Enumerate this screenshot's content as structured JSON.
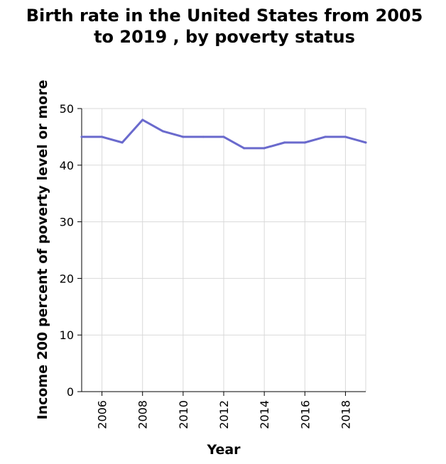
{
  "chart_data": {
    "type": "line",
    "title_lines": [
      "Birth rate in the United States from 2005",
      "to 2019 , by poverty status"
    ],
    "xlabel": "Year",
    "ylabel": "Income 200 percent of poverty level or more",
    "x": [
      2005,
      2006,
      2007,
      2008,
      2009,
      2010,
      2011,
      2012,
      2013,
      2014,
      2015,
      2016,
      2017,
      2018,
      2019
    ],
    "series": [
      {
        "values": [
          45,
          45,
          44,
          48,
          46,
          45,
          45,
          45,
          43,
          43,
          44,
          44,
          45,
          45,
          44
        ],
        "color": "#6a6acd"
      }
    ],
    "xlim": [
      2005,
      2019
    ],
    "ylim": [
      0,
      50
    ],
    "x_ticks": [
      2006,
      2008,
      2010,
      2012,
      2014,
      2016,
      2018
    ],
    "y_ticks": [
      0,
      10,
      20,
      30,
      40,
      50
    ],
    "grid": true,
    "grid_color": "#d9d9d9",
    "legend": "none"
  }
}
